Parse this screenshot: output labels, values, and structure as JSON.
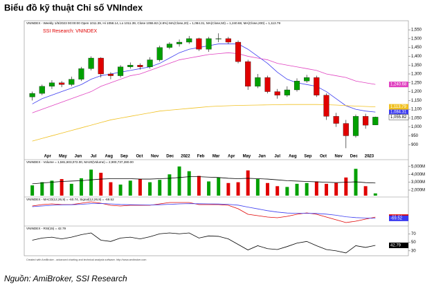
{
  "header": {
    "title": "Biểu đồ kỹ thuật Chỉ số VNIndex"
  },
  "footer": {
    "credit": "Created with AmiBroker - advanced charting and technical analysis software. http://www.amibroker.com",
    "source": "Nguồn: AmiBroker, SSI Research"
  },
  "chart_data": [
    {
      "type": "candlestick",
      "title": "VNINDEX - Weekly 1/5/2023 00:00:00 Open 1011.39, Hi 1058.14, Lo 1011.39, Close 1055.82 (4.8%) MA(Close,20) = 1,084.31, MA(Close,50) = 1,240.68, MA(Close,200) = 1,113.79",
      "subtitle": "SSI Research: VNINDEX",
      "x": [
        0,
        0.64,
        1.28,
        1.92,
        2.56,
        3.2,
        3.84,
        4.48,
        5.12,
        5.76,
        6.4,
        7.04,
        7.68,
        8.32,
        8.96,
        9.6,
        10.24,
        10.88,
        11.52,
        12.16,
        12.8,
        13.44,
        14.08,
        14.72,
        15.36,
        16,
        16.64,
        17.28,
        17.92,
        18.56,
        19.2,
        19.84,
        20.48,
        21.12,
        21.76,
        22.4
      ],
      "open": [
        1170,
        1190,
        1230,
        1250,
        1240,
        1270,
        1330,
        1390,
        1300,
        1290,
        1340,
        1350,
        1340,
        1380,
        1450,
        1470,
        1480,
        1500,
        1440,
        1500,
        1500,
        1480,
        1370,
        1230,
        1280,
        1200,
        1180,
        1210,
        1260,
        1280,
        1180,
        1060,
        1020,
        950,
        1060,
        1011.39
      ],
      "high": [
        1200,
        1240,
        1265,
        1260,
        1285,
        1340,
        1400,
        1395,
        1310,
        1350,
        1365,
        1360,
        1395,
        1460,
        1480,
        1495,
        1515,
        1505,
        1510,
        1530,
        1510,
        1490,
        1380,
        1300,
        1290,
        1215,
        1230,
        1275,
        1295,
        1290,
        1190,
        1080,
        1040,
        1070,
        1075,
        1058.14
      ],
      "low": [
        1150,
        1180,
        1215,
        1225,
        1230,
        1260,
        1320,
        1280,
        1270,
        1280,
        1330,
        1325,
        1330,
        1370,
        1440,
        1455,
        1470,
        1430,
        1425,
        1480,
        1470,
        1360,
        1210,
        1220,
        1190,
        1160,
        1170,
        1200,
        1250,
        1170,
        1040,
        1000,
        880,
        940,
        990,
        1011.39
      ],
      "close": [
        1190,
        1230,
        1250,
        1240,
        1270,
        1330,
        1390,
        1300,
        1290,
        1340,
        1350,
        1340,
        1380,
        1450,
        1470,
        1480,
        1500,
        1440,
        1500,
        1500,
        1480,
        1370,
        1230,
        1280,
        1200,
        1180,
        1210,
        1260,
        1280,
        1180,
        1060,
        1020,
        950,
        1060,
        1010,
        1055.82
      ],
      "close_label": "1,055.82",
      "up_color": "#00a000",
      "down_color": "#e00000",
      "series": [
        {
          "color": "#3a3af0",
          "last_label": "1,084.31",
          "values": [
            1130,
            1160,
            1180,
            1200,
            1220,
            1240,
            1270,
            1290,
            1300,
            1310,
            1320,
            1330,
            1340,
            1360,
            1390,
            1420,
            1440,
            1450,
            1460,
            1470,
            1470,
            1470,
            1440,
            1400,
            1360,
            1310,
            1270,
            1250,
            1240,
            1230,
            1200,
            1160,
            1120,
            1100,
            1090,
            1084.31
          ]
        },
        {
          "color": "#e040c0",
          "last_label": "1,240.68",
          "values": [
            1080,
            1100,
            1120,
            1140,
            1160,
            1180,
            1200,
            1230,
            1250,
            1270,
            1290,
            1300,
            1320,
            1340,
            1360,
            1380,
            1390,
            1400,
            1410,
            1415,
            1420,
            1415,
            1400,
            1390,
            1380,
            1360,
            1350,
            1340,
            1330,
            1320,
            1300,
            1290,
            1280,
            1260,
            1250,
            1240.68
          ]
        },
        {
          "color": "#f0c020",
          "last_label": "1,113.79",
          "values": [
            920,
            935,
            950,
            965,
            980,
            995,
            1010,
            1025,
            1040,
            1050,
            1060,
            1070,
            1080,
            1090,
            1095,
            1100,
            1105,
            1110,
            1115,
            1118,
            1120,
            1122,
            1123,
            1124,
            1125,
            1126,
            1127,
            1127,
            1127,
            1127,
            1126,
            1124,
            1121,
            1118,
            1116,
            1113.79
          ]
        }
      ],
      "xlim": [
        -0.3,
        23.2
      ],
      "xticks": [
        {
          "value": 1,
          "label": "Apr"
        },
        {
          "value": 2,
          "label": "May"
        },
        {
          "value": 3,
          "label": "Jun"
        },
        {
          "value": 4,
          "label": "Jul"
        },
        {
          "value": 5,
          "label": "Aug"
        },
        {
          "value": 6,
          "label": "Sep"
        },
        {
          "value": 7,
          "label": "Oct"
        },
        {
          "value": 8,
          "label": "Nov"
        },
        {
          "value": 9,
          "label": "Dec"
        },
        {
          "value": 10,
          "label": "2022"
        },
        {
          "value": 11,
          "label": "Feb"
        },
        {
          "value": 12,
          "label": "Mar"
        },
        {
          "value": 13,
          "label": "Apr"
        },
        {
          "value": 14,
          "label": "May"
        },
        {
          "value": 15,
          "label": "Jun"
        },
        {
          "value": 16,
          "label": "Jul"
        },
        {
          "value": 17,
          "label": "Aug"
        },
        {
          "value": 18,
          "label": "Sep"
        },
        {
          "value": 19,
          "label": "Oct"
        },
        {
          "value": 20,
          "label": "Nov"
        },
        {
          "value": 21,
          "label": "Dec"
        },
        {
          "value": 22,
          "label": "2023"
        }
      ],
      "ylim": [
        850,
        1570
      ],
      "yticks": [
        900,
        950,
        {
          "value": 1000,
          "label": "1,000"
        },
        {
          "value": 1050,
          "label": "1,050"
        },
        {
          "value": 1100,
          "label": "1,100"
        },
        {
          "value": 1150,
          "label": "1,150"
        },
        {
          "value": 1200,
          "label": "1,200"
        },
        {
          "value": 1250,
          "label": "1,250"
        },
        {
          "value": 1300,
          "label": "1,300"
        },
        {
          "value": 1350,
          "label": "1,350"
        },
        {
          "value": 1400,
          "label": "1,400"
        },
        {
          "value": 1450,
          "label": "1,450"
        },
        {
          "value": 1500,
          "label": "1,500"
        },
        {
          "value": 1550,
          "label": "1,550"
        }
      ]
    },
    {
      "type": "volume",
      "title": "VNINDEX - Volume = 1,581,603,072.00, MA20(Volume) = 2,900,737,280.00",
      "values": [
        2600,
        3000,
        3200,
        3400,
        2800,
        3500,
        4600,
        4200,
        3000,
        2700,
        3200,
        3400,
        3000,
        3300,
        4000,
        5000,
        4400,
        3800,
        3100,
        3600,
        2900,
        3000,
        4500,
        3400,
        2900,
        2500,
        2400,
        2800,
        2900,
        3100,
        2800,
        2900,
        3600,
        4700,
        2500,
        1581.603072
      ],
      "series": [
        {
          "color": "#000000",
          "values": [
            2800,
            2900,
            3000,
            3100,
            3150,
            3200,
            3300,
            3400,
            3450,
            3450,
            3450,
            3400,
            3400,
            3450,
            3500,
            3600,
            3700,
            3700,
            3650,
            3600,
            3500,
            3450,
            3500,
            3450,
            3400,
            3300,
            3200,
            3150,
            3100,
            3050,
            3000,
            2950,
            3000,
            3050,
            2950,
            2900.73728
          ]
        }
      ],
      "ylim": [
        1300,
        5600
      ],
      "yticks": [
        {
          "value": 2000,
          "label": "2,000M"
        },
        {
          "value": 3000,
          "label": "3,000M"
        },
        {
          "value": 4000,
          "label": "4,000M"
        },
        {
          "value": 5000,
          "label": "5,000M"
        }
      ]
    },
    {
      "type": "line",
      "title": "VNINDEX - MACD(12,26,9) = -60.74, Signal(12,26,9) = -69.52",
      "series": [
        {
          "color": "#e00000",
          "last_label": "-60.74",
          "values": [
            20,
            30,
            35,
            30,
            30,
            40,
            50,
            40,
            25,
            20,
            25,
            25,
            25,
            35,
            45,
            45,
            45,
            30,
            30,
            30,
            25,
            0,
            -40,
            -50,
            -60,
            -65,
            -55,
            -40,
            -30,
            -40,
            -60,
            -80,
            -100,
            -90,
            -75,
            -60.74
          ]
        },
        {
          "color": "#3a3af0",
          "last_label": "-69.52",
          "values": [
            15,
            20,
            25,
            28,
            29,
            32,
            37,
            38,
            35,
            31,
            29,
            28,
            27,
            29,
            32,
            35,
            37,
            36,
            35,
            34,
            32,
            26,
            12,
            -1,
            -14,
            -24,
            -31,
            -33,
            -33,
            -34,
            -39,
            -47,
            -58,
            -64,
            -67,
            -69.52
          ]
        }
      ],
      "ylim": [
        -120,
        80
      ]
    },
    {
      "type": "line",
      "title": "VNINDEX - RSI(15) = 42.79",
      "series": [
        {
          "color": "#000000",
          "last_label": "42.79",
          "values": [
            55,
            60,
            62,
            58,
            62,
            68,
            72,
            55,
            52,
            60,
            62,
            58,
            63,
            70,
            72,
            70,
            72,
            60,
            65,
            64,
            58,
            45,
            32,
            42,
            35,
            33,
            40,
            48,
            52,
            42,
            33,
            30,
            25,
            42,
            38,
            42.79
          ]
        }
      ],
      "ylim": [
        20,
        85
      ],
      "yticks": [
        30,
        50,
        70
      ]
    }
  ]
}
